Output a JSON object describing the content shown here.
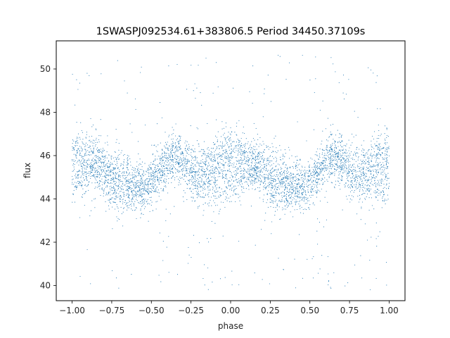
{
  "chart_data": {
    "type": "scatter",
    "title": "1SWASPJ092534.61+383806.5 Period 34450.37109s",
    "xlabel": "phase",
    "ylabel": "flux",
    "xlim": [
      -1.1,
      1.1
    ],
    "ylim": [
      39.3,
      51.3
    ],
    "xticks": [
      -1.0,
      -0.75,
      -0.5,
      -0.25,
      0.0,
      0.25,
      0.5,
      0.75,
      1.0
    ],
    "xtick_labels": [
      "−1.00",
      "−0.75",
      "−0.50",
      "−0.25",
      "0.00",
      "0.25",
      "0.50",
      "0.75",
      "1.00"
    ],
    "yticks": [
      40,
      42,
      44,
      46,
      48,
      50
    ],
    "ytick_labels": [
      "40",
      "42",
      "44",
      "46",
      "48",
      "50"
    ],
    "grid": false,
    "legend": "none",
    "marker_color": "#1f77b4",
    "phase_range": [
      -1.0,
      1.0
    ],
    "model": {
      "description": "Phase-folded light curve, two-branch modulation repeated each 1.0 phase",
      "mean_flux": 45.3,
      "band_center_knots": [
        {
          "phase": -1.0,
          "upper": 46.3,
          "lower": 44.9
        },
        {
          "phase": -0.85,
          "upper": 45.8,
          "lower": 45.4
        },
        {
          "phase": -0.72,
          "upper": 45.2,
          "lower": 44.3
        },
        {
          "phase": -0.55,
          "upper": 44.6,
          "lower": 44.5
        },
        {
          "phase": -0.35,
          "upper": 46.1,
          "lower": 45.8
        },
        {
          "phase": -0.2,
          "upper": 45.4,
          "lower": 44.8
        },
        {
          "phase": 0.0,
          "upper": 46.3,
          "lower": 44.9
        }
      ],
      "outlier_flux_range": [
        39.8,
        50.7
      ]
    }
  }
}
